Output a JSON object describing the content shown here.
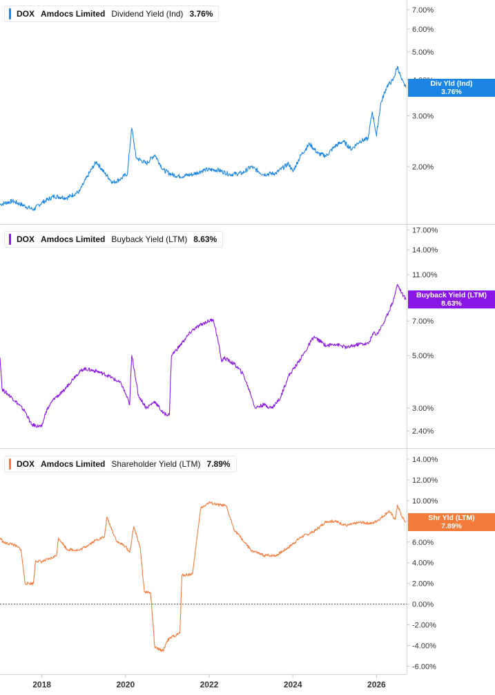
{
  "chart_data": [
    {
      "type": "line",
      "ticker": "DOX",
      "company": "Amdocs Limited",
      "metric": "Dividend Yield (Ind)",
      "last_value": "3.76%",
      "tag_label": "Div Yld (Ind)",
      "tag_value": "3.76%",
      "color": "#1a85e5",
      "scale": "log",
      "ylim": [
        1.3,
        7.4
      ],
      "y_ticks": [
        7,
        6,
        5,
        4,
        3,
        2
      ],
      "y_tick_labels": [
        "7.00%",
        "6.00%",
        "5.00%",
        "4.00%",
        "3.00%",
        "2.00%"
      ],
      "series": [
        {
          "x": [
            2017.0,
            2017.3,
            2017.6,
            2017.8,
            2018.0,
            2018.3,
            2018.6,
            2018.9,
            2019.1,
            2019.3,
            2019.5,
            2019.7,
            2019.9,
            2020.05,
            2020.15,
            2020.25,
            2020.5,
            2020.7,
            2020.9,
            2021.1,
            2021.3,
            2021.6,
            2021.9,
            2022.2,
            2022.5,
            2022.8,
            2023.0,
            2023.3,
            2023.6,
            2023.9,
            2024.0,
            2024.2,
            2024.4,
            2024.6,
            2024.8,
            2025.0,
            2025.2,
            2025.4,
            2025.6,
            2025.8,
            2025.9,
            2026.0,
            2026.1,
            2026.25,
            2026.4,
            2026.5,
            2026.6,
            2026.7
          ],
          "values": [
            1.48,
            1.52,
            1.46,
            1.42,
            1.5,
            1.58,
            1.56,
            1.64,
            1.86,
            2.08,
            1.9,
            1.76,
            1.82,
            1.9,
            2.72,
            2.15,
            2.05,
            2.2,
            1.95,
            1.88,
            1.85,
            1.88,
            1.95,
            1.95,
            1.88,
            1.9,
            2.0,
            1.88,
            1.9,
            2.05,
            1.92,
            2.2,
            2.4,
            2.22,
            2.18,
            2.35,
            2.45,
            2.3,
            2.45,
            2.5,
            3.1,
            2.55,
            3.3,
            3.8,
            4.0,
            4.45,
            4.0,
            3.76
          ]
        }
      ]
    },
    {
      "type": "line",
      "ticker": "DOX",
      "company": "Amdocs Limited",
      "metric": "Buyback Yield (LTM)",
      "last_value": "8.63%",
      "tag_label": "Buyback Yield (LTM)",
      "tag_value": "8.63%",
      "color": "#8a17e8",
      "scale": "log",
      "ylim": [
        2.1,
        17.5
      ],
      "y_ticks": [
        17,
        14,
        11,
        7,
        5,
        3,
        2.4
      ],
      "y_tick_labels": [
        "17.00%",
        "14.00%",
        "11.00%",
        "7.00%",
        "5.00%",
        "3.00%",
        "2.40%"
      ],
      "series": [
        {
          "x": [
            2017.0,
            2017.05,
            2017.3,
            2017.6,
            2017.75,
            2018.0,
            2018.1,
            2018.3,
            2018.5,
            2018.8,
            2019.0,
            2019.3,
            2019.6,
            2019.9,
            2020.1,
            2020.15,
            2020.3,
            2020.5,
            2020.7,
            2020.9,
            2021.05,
            2021.1,
            2021.3,
            2021.6,
            2021.9,
            2022.1,
            2022.3,
            2022.35,
            2022.6,
            2022.8,
            2023.0,
            2023.1,
            2023.3,
            2023.5,
            2023.7,
            2023.9,
            2024.1,
            2024.3,
            2024.5,
            2024.8,
            2025.0,
            2025.3,
            2025.6,
            2025.8,
            2025.95,
            2026.0,
            2026.2,
            2026.4,
            2026.5,
            2026.6,
            2026.7
          ],
          "values": [
            4.9,
            3.6,
            3.3,
            2.9,
            2.55,
            2.5,
            2.9,
            3.3,
            3.5,
            4.1,
            4.4,
            4.3,
            4.1,
            3.8,
            3.1,
            5.0,
            3.4,
            3.0,
            3.2,
            2.85,
            2.8,
            5.0,
            5.5,
            6.4,
            6.9,
            7.1,
            4.7,
            4.9,
            4.6,
            4.2,
            3.4,
            3.0,
            3.1,
            3.0,
            3.3,
            4.1,
            4.6,
            5.2,
            6.0,
            5.5,
            5.6,
            5.4,
            5.6,
            5.6,
            6.3,
            6.1,
            7.0,
            8.5,
            10.0,
            9.2,
            8.63
          ]
        }
      ]
    },
    {
      "type": "line",
      "ticker": "DOX",
      "company": "Amdocs Limited",
      "metric": "Shareholder Yield (LTM)",
      "last_value": "7.89%",
      "tag_label": "Shr Yld (LTM)",
      "tag_value": "7.89%",
      "color": "#f47a3a",
      "scale": "linear",
      "ylim": [
        -6.5,
        14.8
      ],
      "y_ticks": [
        14,
        12,
        10,
        8,
        6,
        4,
        2,
        0,
        -2,
        -4,
        -6
      ],
      "y_tick_labels": [
        "14.00%",
        "12.00%",
        "10.00%",
        "8.00%",
        "6.00%",
        "4.00%",
        "2.00%",
        "0.00%",
        "-2.00%",
        "-4.00%",
        "-6.00%"
      ],
      "zero_line": true,
      "series": [
        {
          "x": [
            2017.0,
            2017.1,
            2017.3,
            2017.5,
            2017.6,
            2017.8,
            2017.85,
            2018.0,
            2018.2,
            2018.35,
            2018.4,
            2018.6,
            2018.9,
            2019.1,
            2019.3,
            2019.5,
            2019.55,
            2019.8,
            2020.0,
            2020.1,
            2020.2,
            2020.35,
            2020.45,
            2020.6,
            2020.7,
            2020.9,
            2021.0,
            2021.1,
            2021.3,
            2021.35,
            2021.6,
            2021.8,
            2022.0,
            2022.2,
            2022.4,
            2022.6,
            2022.8,
            2023.0,
            2023.3,
            2023.6,
            2023.9,
            2024.2,
            2024.5,
            2024.8,
            2025.0,
            2025.3,
            2025.6,
            2025.9,
            2026.1,
            2026.3,
            2026.45,
            2026.5,
            2026.6,
            2026.7
          ],
          "values": [
            6.4,
            5.9,
            5.8,
            5.3,
            2.0,
            2.0,
            4.2,
            4.1,
            4.4,
            4.7,
            6.4,
            5.3,
            5.2,
            5.7,
            6.2,
            6.5,
            8.4,
            6.0,
            5.6,
            5.0,
            7.5,
            5.5,
            1.2,
            1.1,
            -4.2,
            -4.5,
            -3.5,
            -3.2,
            -2.8,
            2.8,
            2.9,
            9.3,
            9.8,
            9.6,
            9.5,
            7.2,
            6.2,
            5.2,
            4.7,
            4.7,
            5.5,
            6.5,
            7.0,
            8.0,
            8.0,
            7.6,
            7.9,
            7.8,
            8.3,
            9.0,
            8.2,
            9.6,
            8.5,
            7.89
          ]
        }
      ]
    }
  ],
  "x_axis": {
    "xlim": [
      2017.0,
      2026.72
    ],
    "ticks": [
      2018,
      2020,
      2022,
      2024,
      2026
    ],
    "tick_labels": [
      "2018",
      "2020",
      "2022",
      "2024",
      "2026"
    ]
  }
}
